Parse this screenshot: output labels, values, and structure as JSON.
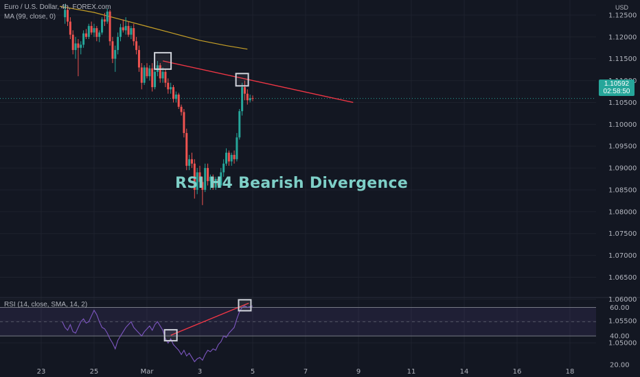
{
  "symbol_line": "Euro / U.S. Dollar, 4h, FOREX.com",
  "ma_legend": "MA (99, close, 0)",
  "rsi_legend": "RSI (14, close, SMA, 14, 2)",
  "currency": "USD",
  "annotation": "RSI H4 Bearish Divergence",
  "last_price": {
    "value": "1.10592",
    "countdown": "02:58:50"
  },
  "colors": {
    "bull": "#26a69a",
    "bear": "#ef5350",
    "ma": "#c9a227",
    "rsi": "#7e57c2",
    "trendline": "#f23645",
    "highlight_box": "#d1d4dc"
  },
  "chart_data": [
    {
      "type": "candlestick",
      "title": "Euro / U.S. Dollar, 4h, FOREX.com",
      "x_tick_labels": [
        "23",
        "25",
        "Mar",
        "3",
        "5",
        "7",
        "9",
        "11",
        "14",
        "16",
        "18"
      ],
      "y_tick_labels": [
        "1.12500",
        "1.12000",
        "1.11500",
        "1.11000",
        "1.10500",
        "1.10000",
        "1.09500",
        "1.09000",
        "1.08500",
        "1.08000",
        "1.07500",
        "1.07000",
        "1.06500",
        "1.06000",
        "1.05500",
        "1.05000"
      ],
      "ylim": [
        1.0475,
        1.1275
      ],
      "ma_series": {
        "name": "MA (99, close, 0)",
        "points": [
          [
            22.7,
            1.127
          ],
          [
            24.0,
            1.1256
          ],
          [
            25.0,
            1.124
          ],
          [
            26.0,
            1.1224
          ],
          [
            27.0,
            1.1208
          ],
          [
            28.0,
            1.1192
          ],
          [
            29.0,
            1.118
          ],
          [
            29.8,
            1.1172
          ]
        ]
      },
      "ohlc": [
        [
          22.9,
          1.1245,
          1.1275,
          1.123,
          1.1262
        ],
        [
          23.0,
          1.1262,
          1.127,
          1.1225,
          1.1235
        ],
        [
          23.1,
          1.1235,
          1.1245,
          1.1195,
          1.1205
        ],
        [
          23.2,
          1.1205,
          1.1215,
          1.116,
          1.117
        ],
        [
          23.3,
          1.117,
          1.12,
          1.115,
          1.1185
        ],
        [
          23.4,
          1.1185,
          1.1195,
          1.111,
          1.1175
        ],
        [
          23.5,
          1.1175,
          1.119,
          1.116,
          1.1182
        ],
        [
          23.6,
          1.1182,
          1.1215,
          1.1175,
          1.1208
        ],
        [
          23.7,
          1.1208,
          1.1218,
          1.1195,
          1.12
        ],
        [
          23.8,
          1.12,
          1.123,
          1.1195,
          1.1225
        ],
        [
          23.9,
          1.1225,
          1.1235,
          1.1205,
          1.121
        ],
        [
          24.0,
          1.121,
          1.123,
          1.12,
          1.122
        ],
        [
          24.1,
          1.122,
          1.1225,
          1.119,
          1.12
        ],
        [
          24.2,
          1.12,
          1.1215,
          1.1188,
          1.121
        ],
        [
          24.3,
          1.121,
          1.1245,
          1.1205,
          1.124
        ],
        [
          24.4,
          1.124,
          1.1255,
          1.1225,
          1.1235
        ],
        [
          24.5,
          1.1235,
          1.1265,
          1.123,
          1.1258
        ],
        [
          24.6,
          1.1258,
          1.1262,
          1.118,
          1.119
        ],
        [
          24.7,
          1.119,
          1.12,
          1.114,
          1.115
        ],
        [
          24.8,
          1.115,
          1.118,
          1.112,
          1.117
        ],
        [
          24.9,
          1.117,
          1.121,
          1.116,
          1.12
        ],
        [
          25.0,
          1.12,
          1.123,
          1.119,
          1.1222
        ],
        [
          25.1,
          1.1222,
          1.124,
          1.121,
          1.1215
        ],
        [
          25.2,
          1.1215,
          1.1245,
          1.1205,
          1.1225
        ],
        [
          25.3,
          1.1225,
          1.1235,
          1.12,
          1.1205
        ],
        [
          25.4,
          1.1205,
          1.1225,
          1.1195,
          1.122
        ],
        [
          25.5,
          1.122,
          1.123,
          1.118,
          1.119
        ],
        [
          25.6,
          1.119,
          1.12,
          1.116,
          1.117
        ],
        [
          25.7,
          1.117,
          1.118,
          1.112,
          1.113
        ],
        [
          25.8,
          1.113,
          1.114,
          1.108,
          1.1095
        ],
        [
          25.9,
          1.1095,
          1.1135,
          1.109,
          1.113
        ],
        [
          26.0,
          1.113,
          1.114,
          1.1105,
          1.111
        ],
        [
          26.1,
          1.111,
          1.1135,
          1.11,
          1.1128
        ],
        [
          26.2,
          1.1128,
          1.114,
          1.1075,
          1.1085
        ],
        [
          26.3,
          1.1085,
          1.1125,
          1.108,
          1.112
        ],
        [
          26.4,
          1.112,
          1.1145,
          1.111,
          1.1135
        ],
        [
          26.5,
          1.1135,
          1.114,
          1.1095,
          1.1105
        ],
        [
          26.6,
          1.1105,
          1.113,
          1.1095,
          1.112
        ],
        [
          26.7,
          1.112,
          1.1125,
          1.1085,
          1.1095
        ],
        [
          26.8,
          1.1095,
          1.1105,
          1.107,
          1.108
        ],
        [
          26.9,
          1.108,
          1.1095,
          1.107,
          1.1085
        ],
        [
          27.0,
          1.1085,
          1.109,
          1.105,
          1.1058
        ],
        [
          27.1,
          1.1058,
          1.1075,
          1.105,
          1.1068
        ],
        [
          27.2,
          1.1068,
          1.1072,
          1.1035,
          1.104
        ],
        [
          27.3,
          1.104,
          1.1045,
          1.102,
          1.1028
        ],
        [
          27.4,
          1.1028,
          1.1035,
          1.097,
          1.098
        ],
        [
          27.5,
          1.098,
          1.099,
          1.0895,
          1.0905
        ],
        [
          27.6,
          1.0905,
          1.093,
          1.0895,
          1.092
        ],
        [
          27.7,
          1.092,
          1.0935,
          1.09,
          1.091
        ],
        [
          27.8,
          1.091,
          1.092,
          1.083,
          1.085
        ],
        [
          27.9,
          1.085,
          1.09,
          1.084,
          1.089
        ],
        [
          28.0,
          1.089,
          1.0905,
          1.086,
          1.0868
        ],
        [
          28.1,
          1.0868,
          1.088,
          1.0815,
          1.085
        ],
        [
          28.2,
          1.085,
          1.091,
          1.0845,
          1.09
        ],
        [
          28.3,
          1.09,
          1.091,
          1.086,
          1.087
        ],
        [
          28.4,
          1.087,
          1.0885,
          1.085,
          1.088
        ],
        [
          28.5,
          1.088,
          1.0885,
          1.085,
          1.0855
        ],
        [
          28.6,
          1.0855,
          1.088,
          1.085,
          1.0875
        ],
        [
          28.7,
          1.0875,
          1.088,
          1.0855,
          1.086
        ],
        [
          28.8,
          1.086,
          1.09,
          1.0855,
          1.089
        ],
        [
          28.9,
          1.089,
          1.092,
          1.088,
          1.091
        ],
        [
          29.0,
          1.091,
          1.0945,
          1.0905,
          1.0935
        ],
        [
          29.1,
          1.0935,
          1.094,
          1.0905,
          1.0915
        ],
        [
          29.2,
          1.0915,
          1.0935,
          1.0905,
          1.093
        ],
        [
          29.3,
          1.093,
          1.094,
          1.091,
          1.092
        ],
        [
          29.4,
          1.092,
          1.098,
          1.0915,
          1.097
        ],
        [
          29.5,
          1.097,
          1.1035,
          1.0965,
          1.103
        ],
        [
          29.6,
          1.103,
          1.1095,
          1.102,
          1.1085
        ],
        [
          29.7,
          1.1085,
          1.11,
          1.1055,
          1.107
        ],
        [
          29.8,
          1.107,
          1.108,
          1.1045,
          1.1055
        ],
        [
          29.9,
          1.1055,
          1.1068,
          1.105,
          1.106
        ],
        [
          30.0,
          1.106,
          1.1066,
          1.1053,
          1.1059
        ]
      ],
      "trendline": [
        [
          26.6,
          1.1145
        ],
        [
          33.8,
          1.105
        ]
      ]
    },
    {
      "type": "line",
      "title": "RSI (14, close, SMA, 14, 2)",
      "y_tick_labels": [
        "60.00",
        "40.00",
        "20.00"
      ],
      "ylim": [
        18,
        66
      ],
      "band": [
        40,
        60
      ],
      "midline": 50,
      "series": [
        {
          "name": "RSI (14, close, SMA, 14, 2)",
          "points": [
            [
              22.8,
              50
            ],
            [
              22.9,
              46
            ],
            [
              23.0,
              44
            ],
            [
              23.1,
              48
            ],
            [
              23.2,
              43
            ],
            [
              23.3,
              42
            ],
            [
              23.4,
              46
            ],
            [
              23.5,
              50
            ],
            [
              23.6,
              52
            ],
            [
              23.7,
              49
            ],
            [
              23.8,
              50
            ],
            [
              23.9,
              54
            ],
            [
              24.0,
              58
            ],
            [
              24.1,
              55
            ],
            [
              24.2,
              50
            ],
            [
              24.3,
              46
            ],
            [
              24.4,
              45
            ],
            [
              24.5,
              42
            ],
            [
              24.6,
              38
            ],
            [
              24.7,
              35
            ],
            [
              24.8,
              31
            ],
            [
              24.9,
              37
            ],
            [
              25.0,
              40
            ],
            [
              25.1,
              43
            ],
            [
              25.2,
              46
            ],
            [
              25.3,
              48
            ],
            [
              25.4,
              50
            ],
            [
              25.5,
              46
            ],
            [
              25.6,
              44
            ],
            [
              25.7,
              42
            ],
            [
              25.8,
              40
            ],
            [
              25.9,
              43
            ],
            [
              26.0,
              45
            ],
            [
              26.1,
              47
            ],
            [
              26.2,
              44
            ],
            [
              26.3,
              48
            ],
            [
              26.4,
              50
            ],
            [
              26.5,
              47
            ],
            [
              26.6,
              44
            ],
            [
              26.7,
              38
            ],
            [
              26.8,
              35
            ],
            [
              26.9,
              38
            ],
            [
              27.0,
              34
            ],
            [
              27.1,
              32
            ],
            [
              27.2,
              30
            ],
            [
              27.3,
              27
            ],
            [
              27.4,
              30
            ],
            [
              27.5,
              26
            ],
            [
              27.6,
              28
            ],
            [
              27.7,
              25
            ],
            [
              27.8,
              22
            ],
            [
              27.9,
              24
            ],
            [
              28.0,
              25
            ],
            [
              28.1,
              23
            ],
            [
              28.2,
              27
            ],
            [
              28.3,
              30
            ],
            [
              28.4,
              29
            ],
            [
              28.5,
              31
            ],
            [
              28.6,
              30
            ],
            [
              28.7,
              34
            ],
            [
              28.8,
              36
            ],
            [
              28.9,
              40
            ],
            [
              29.0,
              39
            ],
            [
              29.1,
              42
            ],
            [
              29.2,
              44
            ],
            [
              29.3,
              46
            ],
            [
              29.4,
              52
            ],
            [
              29.5,
              57
            ],
            [
              29.6,
              60
            ],
            [
              29.7,
              61
            ],
            [
              29.8,
              60
            ],
            [
              29.9,
              60.5
            ],
            [
              30.0,
              61
            ]
          ]
        }
      ],
      "trendline": [
        [
          26.9,
          40.5
        ],
        [
          29.85,
          63
        ]
      ]
    }
  ]
}
